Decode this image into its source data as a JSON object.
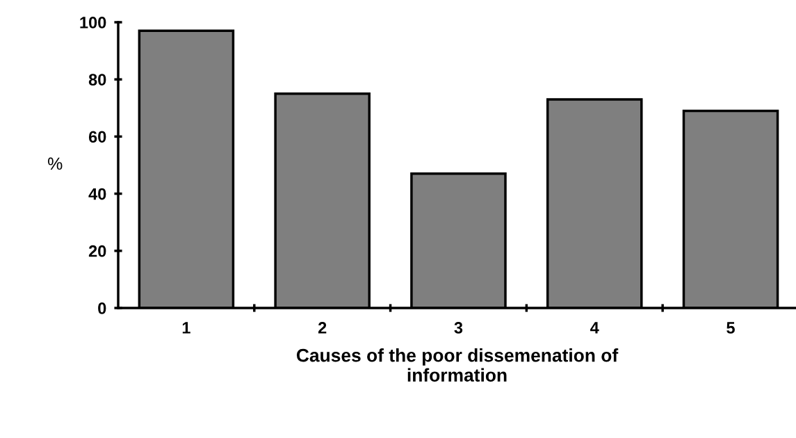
{
  "chart_data": {
    "type": "bar",
    "xlabel": "Causes of the poor dissemenation of\ninformation",
    "ylabel": "%",
    "categories": [
      "1",
      "2",
      "3",
      "4",
      "5"
    ],
    "values": [
      97,
      75,
      47,
      73,
      69
    ],
    "color": "#7f7f7f",
    "ylim": [
      0,
      100
    ],
    "yticks": [
      0,
      20,
      40,
      60,
      80,
      100
    ],
    "grid": false,
    "legend": false
  }
}
